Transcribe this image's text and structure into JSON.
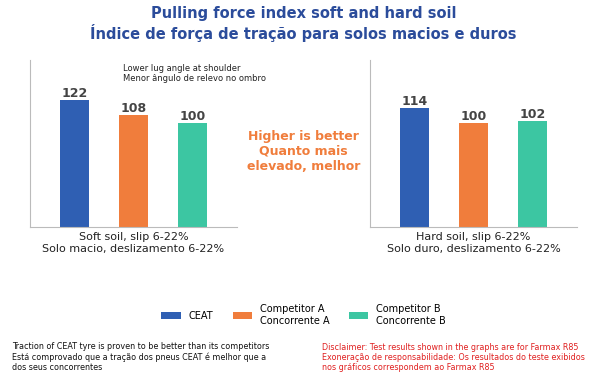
{
  "title": "Pulling force index soft and hard soil\nÍndice de força de tração para solos macios e duros",
  "center_note": "Higher is better\nQuanto mais\nelevado, melhor",
  "footer_left": "Traction of CEAT tyre is proven to be better than its competitors\nEstá comprovado que a tração dos pneus CEAT é melhor que a\ndos seus concorrentes",
  "footer_right": "Disclaimer: Test results shown in the graphs are for Farmax R85\nExoneração de responsabilidade: Os resultados do teste exibidos\nnos gráficos correspondem ao Farmax R85",
  "chart_data": [
    {
      "type": "bar",
      "x_label": "Soft soil, slip 6-22%\nSolo macio, deslizamento 6-22%",
      "annotation": "Lower lug angle at shoulder\nMenor ângulo de relevo no ombro",
      "categories": [
        null
      ],
      "series": [
        {
          "name": "CEAT",
          "color": "#2f5fb3",
          "values": [
            122
          ]
        },
        {
          "name": "Competitor A\nConcorrente A",
          "color": "#f07d3c",
          "values": [
            108
          ]
        },
        {
          "name": "Competitor B\nConcorrente B",
          "color": "#3cc6a2",
          "values": [
            100
          ]
        }
      ],
      "ylim": [
        0,
        160
      ],
      "yticks": [],
      "tick_labels": false,
      "data_labels": true,
      "legend": "lower center"
    },
    {
      "type": "bar",
      "x_label": "Hard soil, slip 6-22%\nSolo duro, deslizamento 6-22%",
      "categories": [
        null
      ],
      "series": [
        {
          "name": "CEAT",
          "color": "#2f5fb3",
          "values": [
            114
          ]
        },
        {
          "name": "Competitor A\nConcorrente A",
          "color": "#f07d3c",
          "values": [
            100
          ]
        },
        {
          "name": "Competitor B\nConcorrente B",
          "color": "#3cc6a2",
          "values": [
            102
          ]
        }
      ],
      "ylim": [
        0,
        160
      ],
      "yticks": [],
      "tick_labels": false,
      "data_labels": true
    }
  ]
}
